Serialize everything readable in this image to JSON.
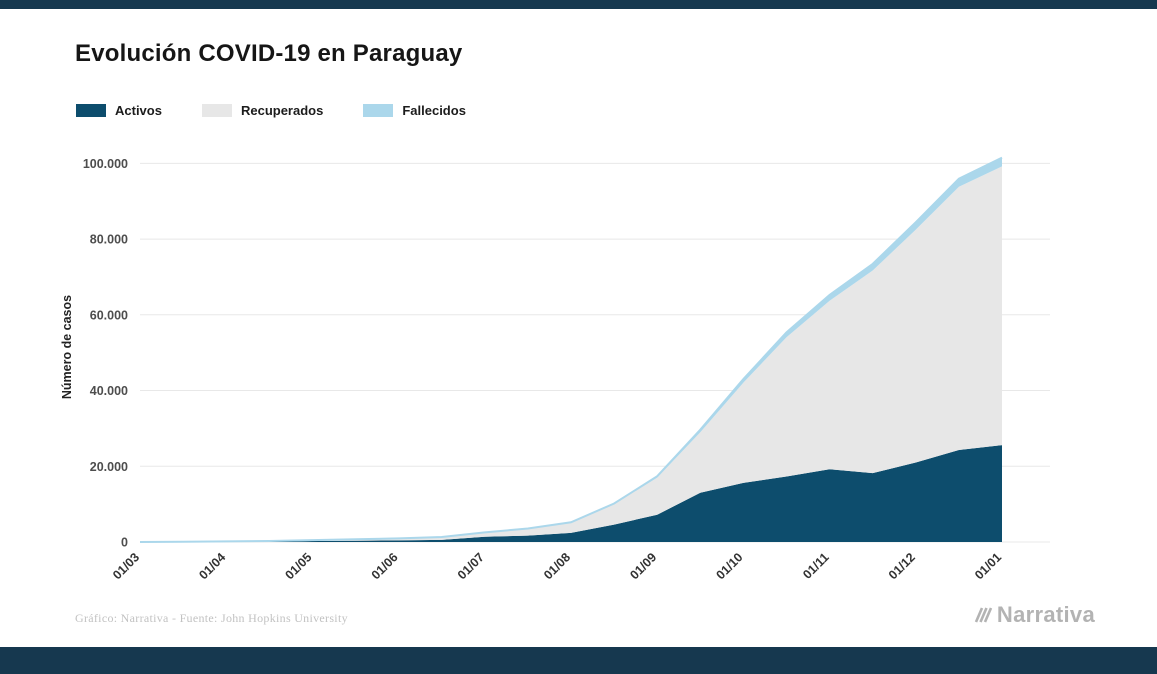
{
  "header": {
    "title": "Evolución COVID-19 en Paraguay"
  },
  "chrome": {
    "bar_color": "#16384f",
    "background": "#ffffff"
  },
  "footer": {
    "credit": "Gráfico: Narrativa - Fuente: John Hopkins University",
    "brand": "Narrativa"
  },
  "chart_data": {
    "type": "area",
    "stacked": true,
    "title": "Evolución COVID-19 en Paraguay",
    "xlabel": "",
    "ylabel": "Número de casos",
    "grid": "horizontal",
    "legend_position": "top-left",
    "x_unit": "months since 01/03 (half-month resolution)",
    "x": [
      0,
      0.5,
      1,
      1.5,
      2,
      2.5,
      3,
      3.5,
      4,
      4.5,
      5,
      5.5,
      6,
      6.5,
      7,
      7.5,
      8,
      8.5,
      9,
      9.5,
      10
    ],
    "x_tick_positions": [
      0,
      1,
      2,
      3,
      4,
      5,
      6,
      7,
      8,
      9,
      10
    ],
    "x_tick_labels": [
      "01/03",
      "01/04",
      "01/05",
      "01/06",
      "01/07",
      "01/08",
      "01/09",
      "01/10",
      "01/11",
      "01/12",
      "01/01"
    ],
    "y_ticks": [
      0,
      20000,
      40000,
      60000,
      80000,
      100000
    ],
    "y_tick_labels": [
      "0",
      "20.000",
      "40.000",
      "60.000",
      "80.000",
      "100.000"
    ],
    "ylim": [
      0,
      103000
    ],
    "series": [
      {
        "name": "Activos",
        "color": "#0d4d6d",
        "values": [
          1,
          30,
          100,
          140,
          270,
          350,
          420,
          560,
          1400,
          1700,
          2400,
          4600,
          7200,
          13000,
          15600,
          17300,
          19200,
          18200,
          21000,
          24300,
          25600
        ]
      },
      {
        "name": "Recuperados",
        "color": "#e7e7e7",
        "values": [
          0,
          10,
          50,
          120,
          230,
          380,
          520,
          750,
          1100,
          1800,
          2700,
          5400,
          9800,
          16000,
          26500,
          36800,
          44500,
          53500,
          61500,
          69500,
          73600
        ]
      },
      {
        "name": "Fallecidos",
        "color": "#abd7eb",
        "values": [
          0,
          3,
          5,
          8,
          10,
          12,
          15,
          20,
          30,
          55,
          90,
          160,
          380,
          650,
          950,
          1250,
          1550,
          1750,
          1950,
          2150,
          2300
        ]
      }
    ]
  }
}
